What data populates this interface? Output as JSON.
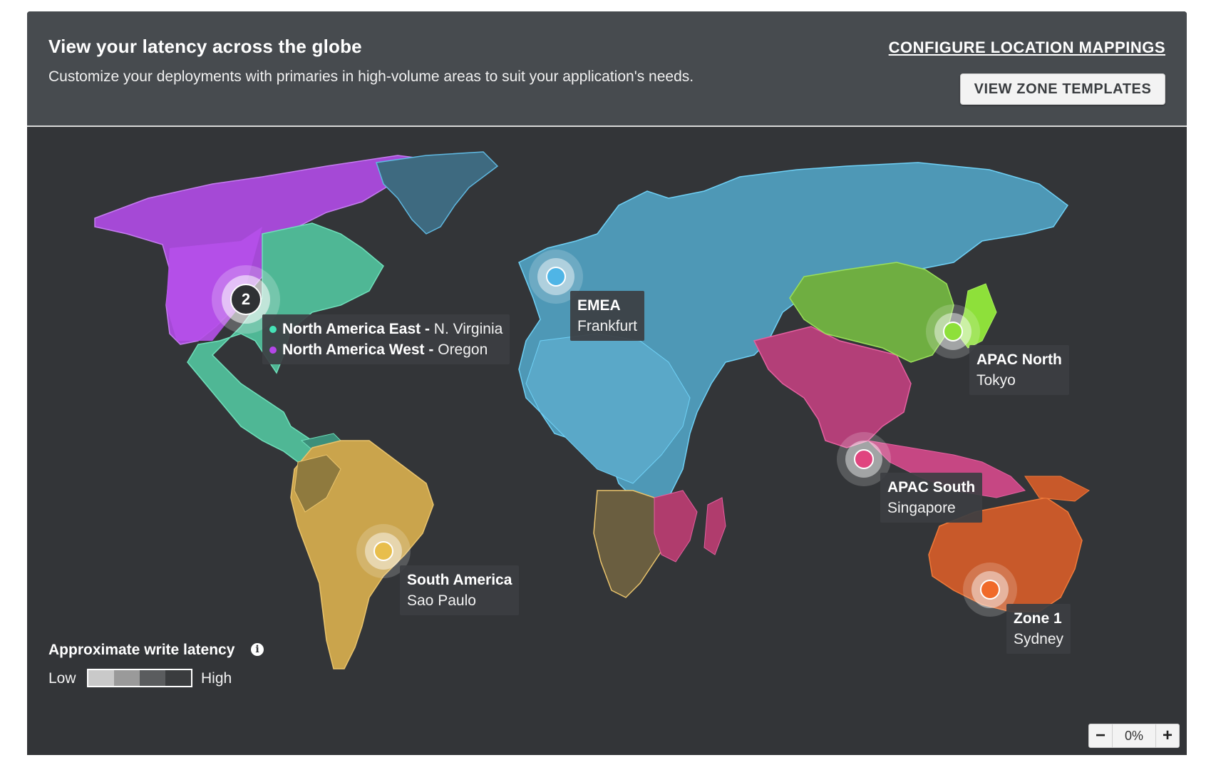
{
  "header": {
    "title": "View your latency across the globe",
    "subtitle": "Customize your deployments with primaries in high-volume areas to suit your application's needs.",
    "configure_link": "CONFIGURE LOCATION MAPPINGS",
    "zone_templates_button": "VIEW ZONE TEMPLATES"
  },
  "regions": {
    "emea": {
      "name": "EMEA",
      "city": "Frankfurt",
      "color": "#4fb5e6"
    },
    "apac_north": {
      "name": "APAC North",
      "city": "Tokyo",
      "color": "#8ee03a"
    },
    "apac_south": {
      "name": "APAC South",
      "city": "Singapore",
      "color": "#e0457f"
    },
    "south_america": {
      "name": "South America",
      "city": "Sao Paulo",
      "color": "#e8be4c"
    },
    "zone1": {
      "name": "Zone 1",
      "city": "Sydney",
      "color": "#f06a2a"
    }
  },
  "cluster": {
    "count": "2",
    "items": [
      {
        "name": "North America East -",
        "city": "N. Virginia",
        "color": "#46e3b7"
      },
      {
        "name": "North America West -",
        "city": "Oregon",
        "color": "#b347e8"
      }
    ]
  },
  "legend": {
    "title": "Approximate write latency",
    "low": "Low",
    "high": "High",
    "info_icon": "info-icon"
  },
  "zoom": {
    "minus": "−",
    "value": "0%",
    "plus": "+"
  }
}
